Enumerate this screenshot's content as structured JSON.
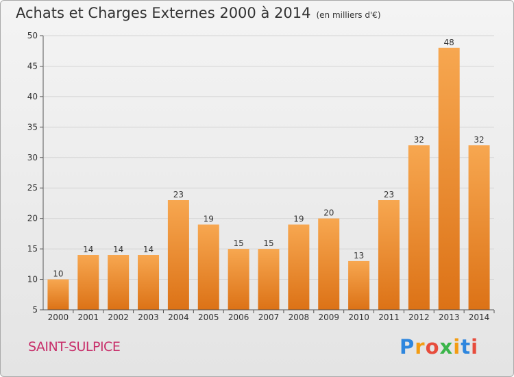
{
  "title": "Achats et Charges Externes 2000 à 2014",
  "unit": "(en milliers d'€)",
  "commune": "SAINT-SULPICE",
  "logo": {
    "text": "Proxiti",
    "letter_colors": [
      "#2e86de",
      "#f39c12",
      "#e74c3c",
      "#3bb54a",
      "#f39c12",
      "#2e86de",
      "#e74c3c"
    ]
  },
  "colors": {
    "bar_top": "#f7a750",
    "bar_bottom": "#dc7216",
    "grid": "#d4d4d4",
    "axis": "#555555",
    "text": "#333333"
  },
  "chart_data": {
    "type": "bar",
    "categories": [
      "2000",
      "2001",
      "2002",
      "2003",
      "2004",
      "2005",
      "2006",
      "2007",
      "2008",
      "2009",
      "2010",
      "2011",
      "2012",
      "2013",
      "2014"
    ],
    "values": [
      10,
      14,
      14,
      14,
      23,
      19,
      15,
      15,
      19,
      20,
      13,
      23,
      32,
      48,
      32
    ],
    "title": "Achats et Charges Externes 2000 à 2014",
    "ylabel": "",
    "xlabel": "",
    "ylim": [
      5,
      50
    ],
    "yticks": [
      5,
      10,
      15,
      20,
      25,
      30,
      35,
      40,
      45,
      50
    ],
    "grid": true,
    "data_labels": true
  }
}
